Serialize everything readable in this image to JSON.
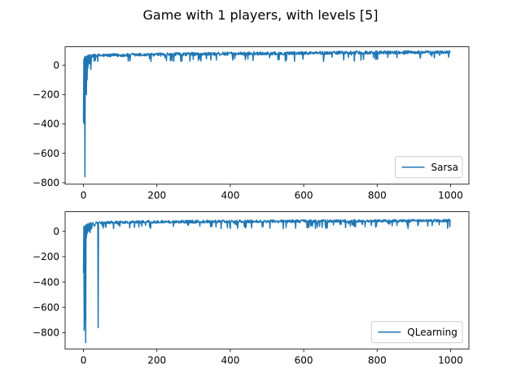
{
  "figure": {
    "suptitle": "Game with 1 players, with levels [5]"
  },
  "chart_data": [
    {
      "type": "line",
      "title": "",
      "xlabel": "",
      "ylabel": "",
      "xlim": [
        -50,
        1050
      ],
      "ylim": [
        -810,
        125
      ],
      "xticks": [
        0,
        200,
        400,
        600,
        800,
        1000
      ],
      "yticks": [
        0,
        -200,
        -400,
        -600,
        -800
      ],
      "grid": false,
      "legend_position": "lower-right",
      "color": "#1f77b4",
      "series": [
        {
          "name": "Sarsa",
          "x_start": 0,
          "x_end": 999,
          "early_values": [
            {
              "x": 0,
              "y": -390
            },
            {
              "x": 1,
              "y": 40
            },
            {
              "x": 2,
              "y": -400
            },
            {
              "x": 3,
              "y": 55
            },
            {
              "x": 4,
              "y": -760
            },
            {
              "x": 5,
              "y": 60
            },
            {
              "x": 6,
              "y": -50
            },
            {
              "x": 7,
              "y": 50
            },
            {
              "x": 8,
              "y": -200
            },
            {
              "x": 9,
              "y": 60
            },
            {
              "x": 10,
              "y": -100
            },
            {
              "x": 11,
              "y": 65
            },
            {
              "x": 12,
              "y": -20
            },
            {
              "x": 14,
              "y": 70
            },
            {
              "x": 16,
              "y": 10
            },
            {
              "x": 18,
              "y": 70
            },
            {
              "x": 20,
              "y": -30
            },
            {
              "x": 22,
              "y": 70
            }
          ],
          "trend": [
            {
              "x": 25,
              "y": 65
            },
            {
              "x": 100,
              "y": 68
            },
            {
              "x": 200,
              "y": 72
            },
            {
              "x": 300,
              "y": 76
            },
            {
              "x": 400,
              "y": 78
            },
            {
              "x": 600,
              "y": 82
            },
            {
              "x": 800,
              "y": 86
            },
            {
              "x": 999,
              "y": 88
            }
          ],
          "approx_upper_envelope": 100,
          "approx_lower_envelope": 25
        }
      ]
    },
    {
      "type": "line",
      "title": "",
      "xlabel": "",
      "ylabel": "",
      "xlim": [
        -50,
        1050
      ],
      "ylim": [
        -930,
        155
      ],
      "xticks": [
        0,
        200,
        400,
        600,
        800,
        1000
      ],
      "yticks": [
        0,
        -200,
        -400,
        -600,
        -800
      ],
      "grid": false,
      "legend_position": "lower-right",
      "color": "#1f77b4",
      "series": [
        {
          "name": "QLearning",
          "x_start": 0,
          "x_end": 999,
          "early_values": [
            {
              "x": 0,
              "y": -330
            },
            {
              "x": 1,
              "y": 40
            },
            {
              "x": 2,
              "y": -780
            },
            {
              "x": 3,
              "y": 30
            },
            {
              "x": 4,
              "y": -700
            },
            {
              "x": 5,
              "y": 50
            },
            {
              "x": 6,
              "y": -880
            },
            {
              "x": 7,
              "y": 40
            },
            {
              "x": 8,
              "y": -50
            },
            {
              "x": 9,
              "y": 55
            },
            {
              "x": 10,
              "y": -20
            },
            {
              "x": 12,
              "y": 60
            },
            {
              "x": 14,
              "y": 0
            },
            {
              "x": 16,
              "y": 65
            },
            {
              "x": 18,
              "y": -10
            },
            {
              "x": 20,
              "y": 70
            },
            {
              "x": 22,
              "y": 20
            },
            {
              "x": 25,
              "y": 70
            },
            {
              "x": 30,
              "y": 40
            },
            {
              "x": 35,
              "y": 75
            },
            {
              "x": 38,
              "y": 60
            },
            {
              "x": 39,
              "y": 70
            },
            {
              "x": 40,
              "y": -760
            },
            {
              "x": 41,
              "y": 70
            },
            {
              "x": 44,
              "y": 75
            }
          ],
          "trend": [
            {
              "x": 45,
              "y": 70
            },
            {
              "x": 100,
              "y": 72
            },
            {
              "x": 200,
              "y": 75
            },
            {
              "x": 400,
              "y": 78
            },
            {
              "x": 600,
              "y": 80
            },
            {
              "x": 800,
              "y": 82
            },
            {
              "x": 999,
              "y": 85
            }
          ],
          "approx_upper_envelope": 100,
          "approx_lower_envelope": 20
        }
      ]
    }
  ]
}
